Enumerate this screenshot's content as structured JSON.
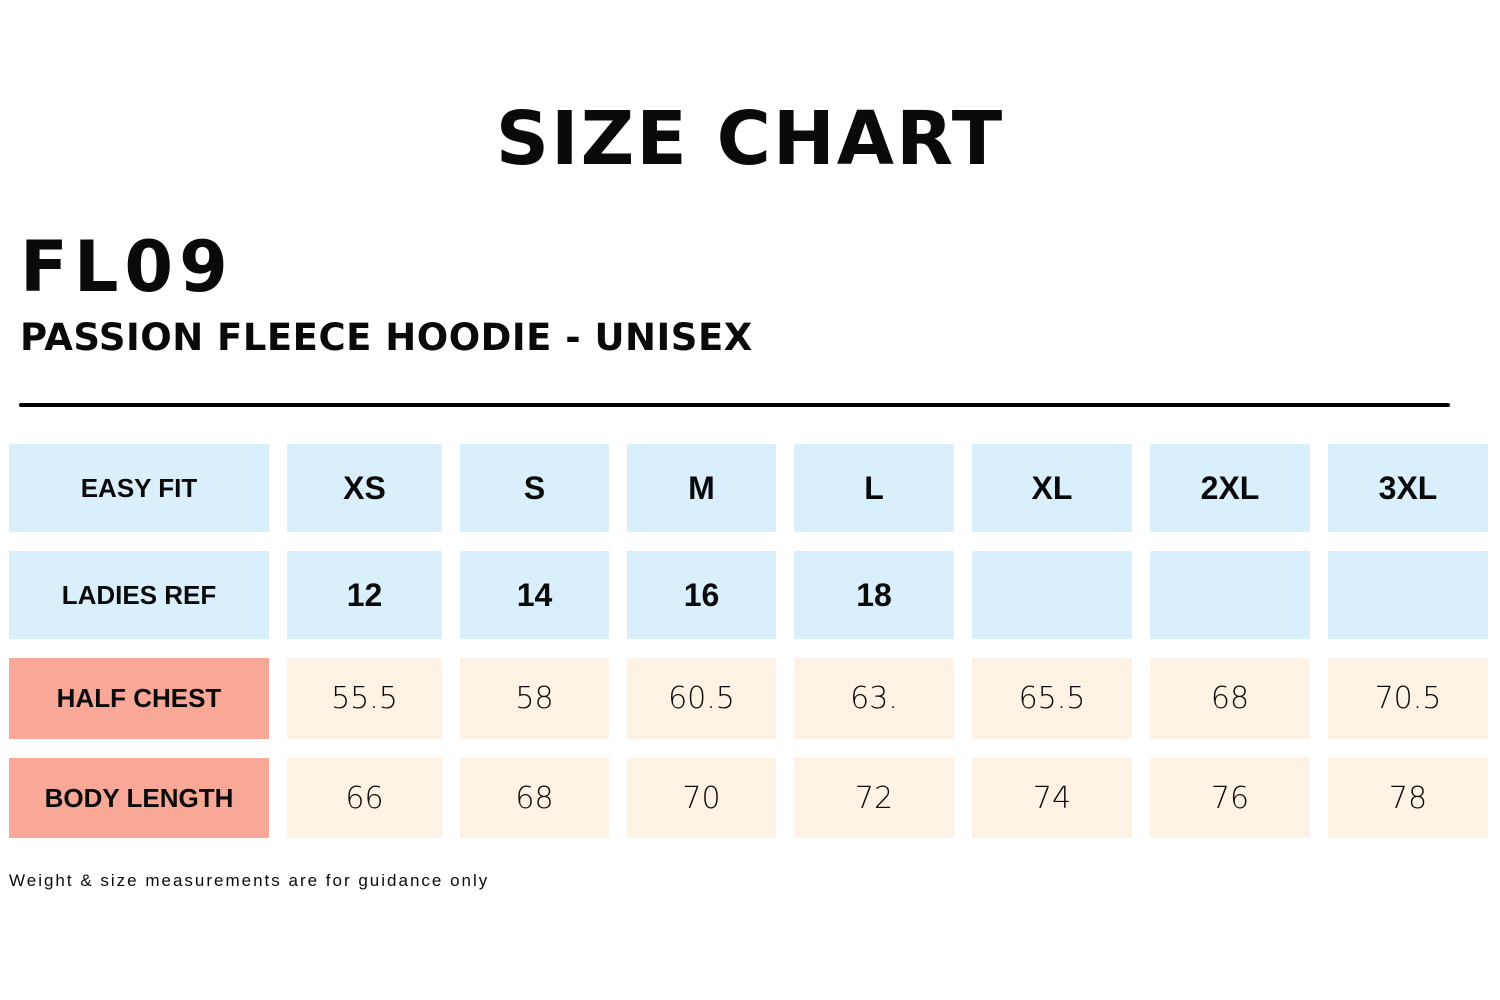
{
  "title": "SIZE CHART",
  "product_code": "FL09",
  "product_name": "PASSION FLEECE HOODIE - UNISEX",
  "colors": {
    "header_bg": "#d9f0fc",
    "measure_label_bg": "#f9a898",
    "value_bg": "#fdf2e4"
  },
  "table": {
    "rows": [
      {
        "label": "EASY FIT",
        "cells": [
          "XS",
          "S",
          "M",
          "L",
          "XL",
          "2XL",
          "3XL"
        ]
      },
      {
        "label": "LADIES REF",
        "cells": [
          "12",
          "14",
          "16",
          "18",
          "",
          "",
          ""
        ]
      },
      {
        "label": "HALF CHEST",
        "cells": [
          "55.5",
          "58",
          "60.5",
          "63.",
          "65.5",
          "68",
          "70.5"
        ]
      },
      {
        "label": "BODY LENGTH",
        "cells": [
          "66",
          "68",
          "70",
          "72",
          "74",
          "76",
          "78"
        ]
      }
    ]
  },
  "footnote": "Weight & size measurements are for guidance only"
}
